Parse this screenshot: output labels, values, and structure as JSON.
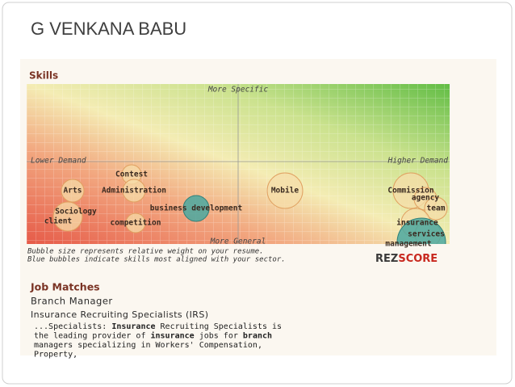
{
  "title": "G VENKANA BABU",
  "skills": {
    "heading": "Skills",
    "axis_labels": {
      "top": "More Specific",
      "left": "Lower Demand",
      "right": "Higher Demand",
      "bottom": "More General"
    },
    "bubbles": [
      {
        "lines": [
          "Contest"
        ]
      },
      {
        "lines": [
          "Arts"
        ]
      },
      {
        "lines": [
          "Administration"
        ]
      },
      {
        "lines": [
          "business development"
        ]
      },
      {
        "lines": [
          "Sociology",
          "client"
        ]
      },
      {
        "lines": [
          "competition"
        ]
      },
      {
        "lines": [
          "Mobile"
        ]
      },
      {
        "lines": [
          "Commission"
        ]
      },
      {
        "lines": [
          "agency"
        ]
      },
      {
        "lines": [
          "team"
        ]
      },
      {
        "lines": [
          "insurance"
        ]
      },
      {
        "lines": [
          "services"
        ]
      },
      {
        "lines": [
          "management"
        ]
      }
    ],
    "notes": [
      "Bubble size represents relative weight on your resume.",
      "Blue bubbles indicate skills most aligned with your sector."
    ],
    "logo": {
      "part1": "REZ",
      "part2": "SCORE"
    }
  },
  "job_matches": {
    "heading": "Job Matches",
    "job_title": "Branch Manager",
    "company": "Insurance Recruiting Specialists (IRS)",
    "description": [
      [
        {
          "text": "...Specialists: ",
          "bold": false
        },
        {
          "text": "Insurance",
          "bold": true
        },
        {
          "text": " Recruiting Specialists is",
          "bold": false
        }
      ],
      [
        {
          "text": "the leading provider of ",
          "bold": false
        },
        {
          "text": "insurance",
          "bold": true
        },
        {
          "text": " jobs for ",
          "bold": false
        },
        {
          "text": "branch",
          "bold": true
        }
      ],
      [
        {
          "text": "managers specializing in Workers' Compensation,",
          "bold": false
        }
      ],
      [
        {
          "text": "Property,",
          "bold": false
        }
      ]
    ]
  }
}
